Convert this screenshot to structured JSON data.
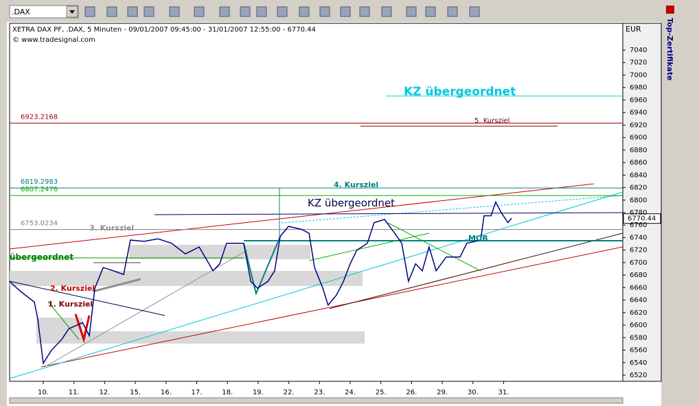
{
  "toolbar": {
    "symbol": ".DAX"
  },
  "chart": {
    "title": "XETRA DAX PF, .DAX, 5 Minuten - 09/01/2007 09:45:00 - 31/01/2007 12:55:00 - 6770.44",
    "copyright": "© www.tradesignal.com",
    "currency": "EUR",
    "yticks": [
      7040,
      7020,
      7000,
      6980,
      6960,
      6940,
      6920,
      6900,
      6880,
      6860,
      6840,
      6820,
      6800,
      6780,
      6760,
      6740,
      6720,
      6700,
      6680,
      6660,
      6640,
      6620,
      6600,
      6580,
      6560,
      6540,
      6520
    ],
    "x_labels": [
      "10.",
      "11.",
      "12.",
      "15.",
      "16.",
      "17.",
      "18.",
      "19.",
      "22.",
      "23.",
      "24.",
      "25.",
      "26.",
      "29.",
      "30.",
      "31."
    ],
    "price": {
      "color": "#000080",
      "x": [
        -1.1,
        -0.74,
        -0.29,
        -0.18,
        0,
        0.27,
        0.6,
        0.83,
        1.28,
        1.5,
        1.68,
        1.95,
        2.28,
        2.62,
        2.84,
        3.29,
        3.74,
        4.18,
        4.63,
        5.08,
        5.53,
        5.75,
        5.97,
        6.53,
        6.76,
        6.98,
        7.32,
        7.54,
        7.72,
        7.99,
        8.43,
        8.66,
        8.84,
        9.11,
        9.28,
        9.55,
        9.78,
        10,
        10.22,
        10.56,
        10.78,
        11.12,
        11.45,
        11.68,
        11.9,
        12.13,
        12.35,
        12.57,
        12.8,
        13.13,
        13.58,
        13.8,
        14.25,
        14.36,
        14.59,
        14.74,
        14.92,
        15.14,
        15.26
      ],
      "values": [
        6670,
        6654,
        6637,
        6610,
        6539,
        6560,
        6577,
        6594,
        6604,
        6583,
        6659,
        6692,
        6687,
        6681,
        6736,
        6734,
        6738,
        6731,
        6714,
        6725,
        6687,
        6698,
        6731,
        6731,
        6670,
        6659,
        6670,
        6687,
        6742,
        6758,
        6753,
        6747,
        6692,
        6659,
        6632,
        6648,
        6670,
        6698,
        6720,
        6731,
        6764,
        6769,
        6747,
        6731,
        6670,
        6698,
        6687,
        6725,
        6687,
        6709,
        6709,
        6731,
        6736,
        6775,
        6775,
        6797,
        6780,
        6764,
        6771
      ]
    },
    "last_price": 6770.44,
    "levels": [
      {
        "value": 6923.2168,
        "color": "#a00000"
      },
      {
        "value": 6819.2983,
        "color": "#008080"
      },
      {
        "value": 6807.2476,
        "color": "#00b000"
      },
      {
        "value": 6753.0234,
        "color": "#808080"
      }
    ],
    "annotations": [
      "KZ übergeordnet",
      "5. Kursziel",
      "4. Kursziel",
      "KZ übergeordnet",
      "3. Kursziel",
      "übergeordnet",
      "2. Kursziel",
      "1. Kursziel",
      "MOB"
    ]
  },
  "side_panel": {
    "title": "Top-Zertifikate"
  }
}
